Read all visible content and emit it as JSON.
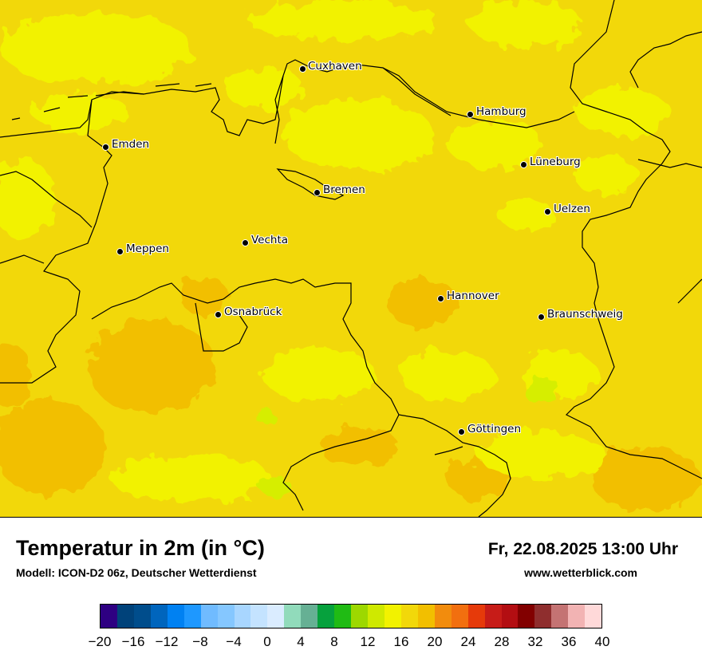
{
  "map": {
    "title": "Temperatur in 2m (in °C)",
    "model": "Modell: ICON-D2 06z, Deutscher Wetterdienst",
    "datetime": "Fr, 22.08.2025 13:00 Uhr",
    "website": "www.wetterblick.com",
    "cities": [
      {
        "name": "Cuxhaven"
      },
      {
        "name": "Hamburg"
      },
      {
        "name": "Emden"
      },
      {
        "name": "Lüneburg"
      },
      {
        "name": "Bremen"
      },
      {
        "name": "Uelzen"
      },
      {
        "name": "Vechta"
      },
      {
        "name": "Meppen"
      },
      {
        "name": "Hannover"
      },
      {
        "name": "Osnabrück"
      },
      {
        "name": "Braunschweig"
      },
      {
        "name": "Göttingen"
      }
    ],
    "colors": {
      "field_16_18": "#f2f200",
      "field_18_20": "#f2d80a",
      "field_20_22": "#f2bf00",
      "field_14_16": "#d6ee00"
    }
  },
  "legend": {
    "unit": "°C",
    "colors": [
      "#2e0082",
      "#00427a",
      "#004d8c",
      "#0065bd",
      "#0081f2",
      "#1e98ff",
      "#70bbff",
      "#85c7ff",
      "#a8d6ff",
      "#c4e3ff",
      "#daecff",
      "#91dbbb",
      "#66b094",
      "#06a13d",
      "#20bb14",
      "#9dd800",
      "#cfe900",
      "#f2f200",
      "#f2d80a",
      "#f2bf00",
      "#f28c0d",
      "#f26f0f",
      "#e63a0a",
      "#c71c18",
      "#b30e12",
      "#820000",
      "#8f2e2e",
      "#c47373",
      "#f2b3b3",
      "#ffd9d9"
    ],
    "ticks": [
      "−20",
      "−16",
      "−12",
      "−8",
      "−4",
      "0",
      "4",
      "8",
      "12",
      "16",
      "20",
      "24",
      "28",
      "32",
      "36",
      "40"
    ]
  }
}
